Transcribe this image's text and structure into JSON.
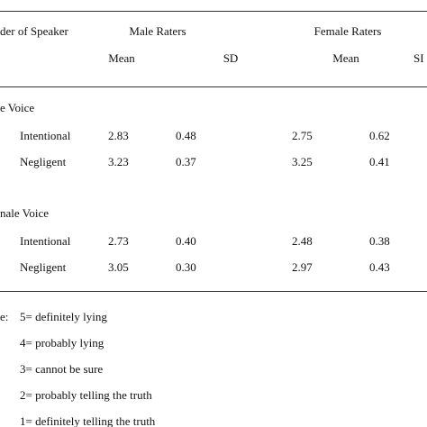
{
  "table": {
    "header": {
      "group_col": "der of Speaker",
      "male": "Male Raters",
      "female": "Female Raters",
      "sub": [
        "Mean",
        "SD",
        "Mean",
        "SI"
      ]
    },
    "sections": [
      {
        "label": "e Voice",
        "rows": [
          [
            "Intentional",
            "2.83",
            "0.48",
            "2.75",
            "0.62"
          ],
          [
            "Negligent",
            "3.23",
            "0.37",
            "3.25",
            "0.41"
          ]
        ]
      },
      {
        "label": "nale Voice",
        "rows": [
          [
            "Intentional",
            "2.73",
            "0.40",
            "2.48",
            "0.38"
          ],
          [
            "Negligent",
            "3.05",
            "0.30",
            "2.97",
            "0.43"
          ]
        ]
      }
    ]
  },
  "note": {
    "label": "e:",
    "items": [
      "5= definitely lying",
      "4= probably lying",
      "3= cannot be sure",
      "2= probably telling the truth",
      "1= definitely telling the truth"
    ]
  }
}
